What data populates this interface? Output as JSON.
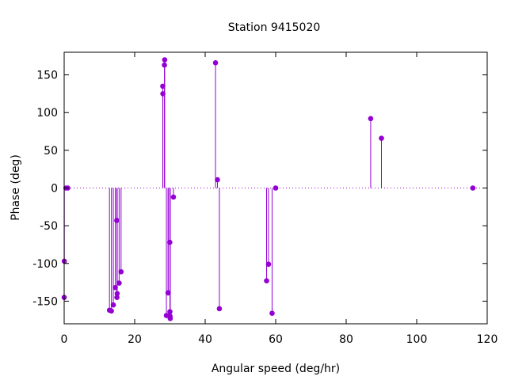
{
  "chart_data": {
    "type": "scatter",
    "style": "impulses-with-points",
    "title": "Station 9415020",
    "xlabel": "Angular speed (deg/hr)",
    "ylabel": "Phase (deg)",
    "xlim": [
      0,
      120
    ],
    "ylim": [
      -180,
      180
    ],
    "xticks": [
      0,
      20,
      40,
      60,
      80,
      100,
      120
    ],
    "yticks": [
      -150,
      -100,
      -50,
      0,
      50,
      100,
      150
    ],
    "zero_line": true,
    "grid": false,
    "color": "#9400d3",
    "points": [
      {
        "x": 0.0,
        "y": -145
      },
      {
        "x": 0.04,
        "y": -97
      },
      {
        "x": 0.5,
        "y": 0
      },
      {
        "x": 1.0,
        "y": 0
      },
      {
        "x": 12.85,
        "y": -162
      },
      {
        "x": 13.4,
        "y": -163
      },
      {
        "x": 13.94,
        "y": -155
      },
      {
        "x": 14.5,
        "y": -132
      },
      {
        "x": 14.92,
        "y": -43
      },
      {
        "x": 14.96,
        "y": -145
      },
      {
        "x": 15.04,
        "y": -140
      },
      {
        "x": 15.59,
        "y": -126
      },
      {
        "x": 16.14,
        "y": -111
      },
      {
        "x": 27.97,
        "y": 135
      },
      {
        "x": 28.0,
        "y": 125
      },
      {
        "x": 28.44,
        "y": 163
      },
      {
        "x": 28.51,
        "y": 170
      },
      {
        "x": 29.0,
        "y": -169
      },
      {
        "x": 29.46,
        "y": -139
      },
      {
        "x": 29.53,
        "y": -139
      },
      {
        "x": 29.96,
        "y": -72
      },
      {
        "x": 30.0,
        "y": -164
      },
      {
        "x": 30.04,
        "y": -170
      },
      {
        "x": 30.08,
        "y": -173
      },
      {
        "x": 31.0,
        "y": -12
      },
      {
        "x": 42.93,
        "y": 166
      },
      {
        "x": 43.48,
        "y": 11
      },
      {
        "x": 44.03,
        "y": -160
      },
      {
        "x": 57.42,
        "y": -123
      },
      {
        "x": 57.97,
        "y": -101
      },
      {
        "x": 58.98,
        "y": -166
      },
      {
        "x": 60.0,
        "y": 0
      },
      {
        "x": 86.95,
        "y": 92
      },
      {
        "x": 90.0,
        "y": 66
      },
      {
        "x": 115.94,
        "y": 0
      }
    ]
  }
}
